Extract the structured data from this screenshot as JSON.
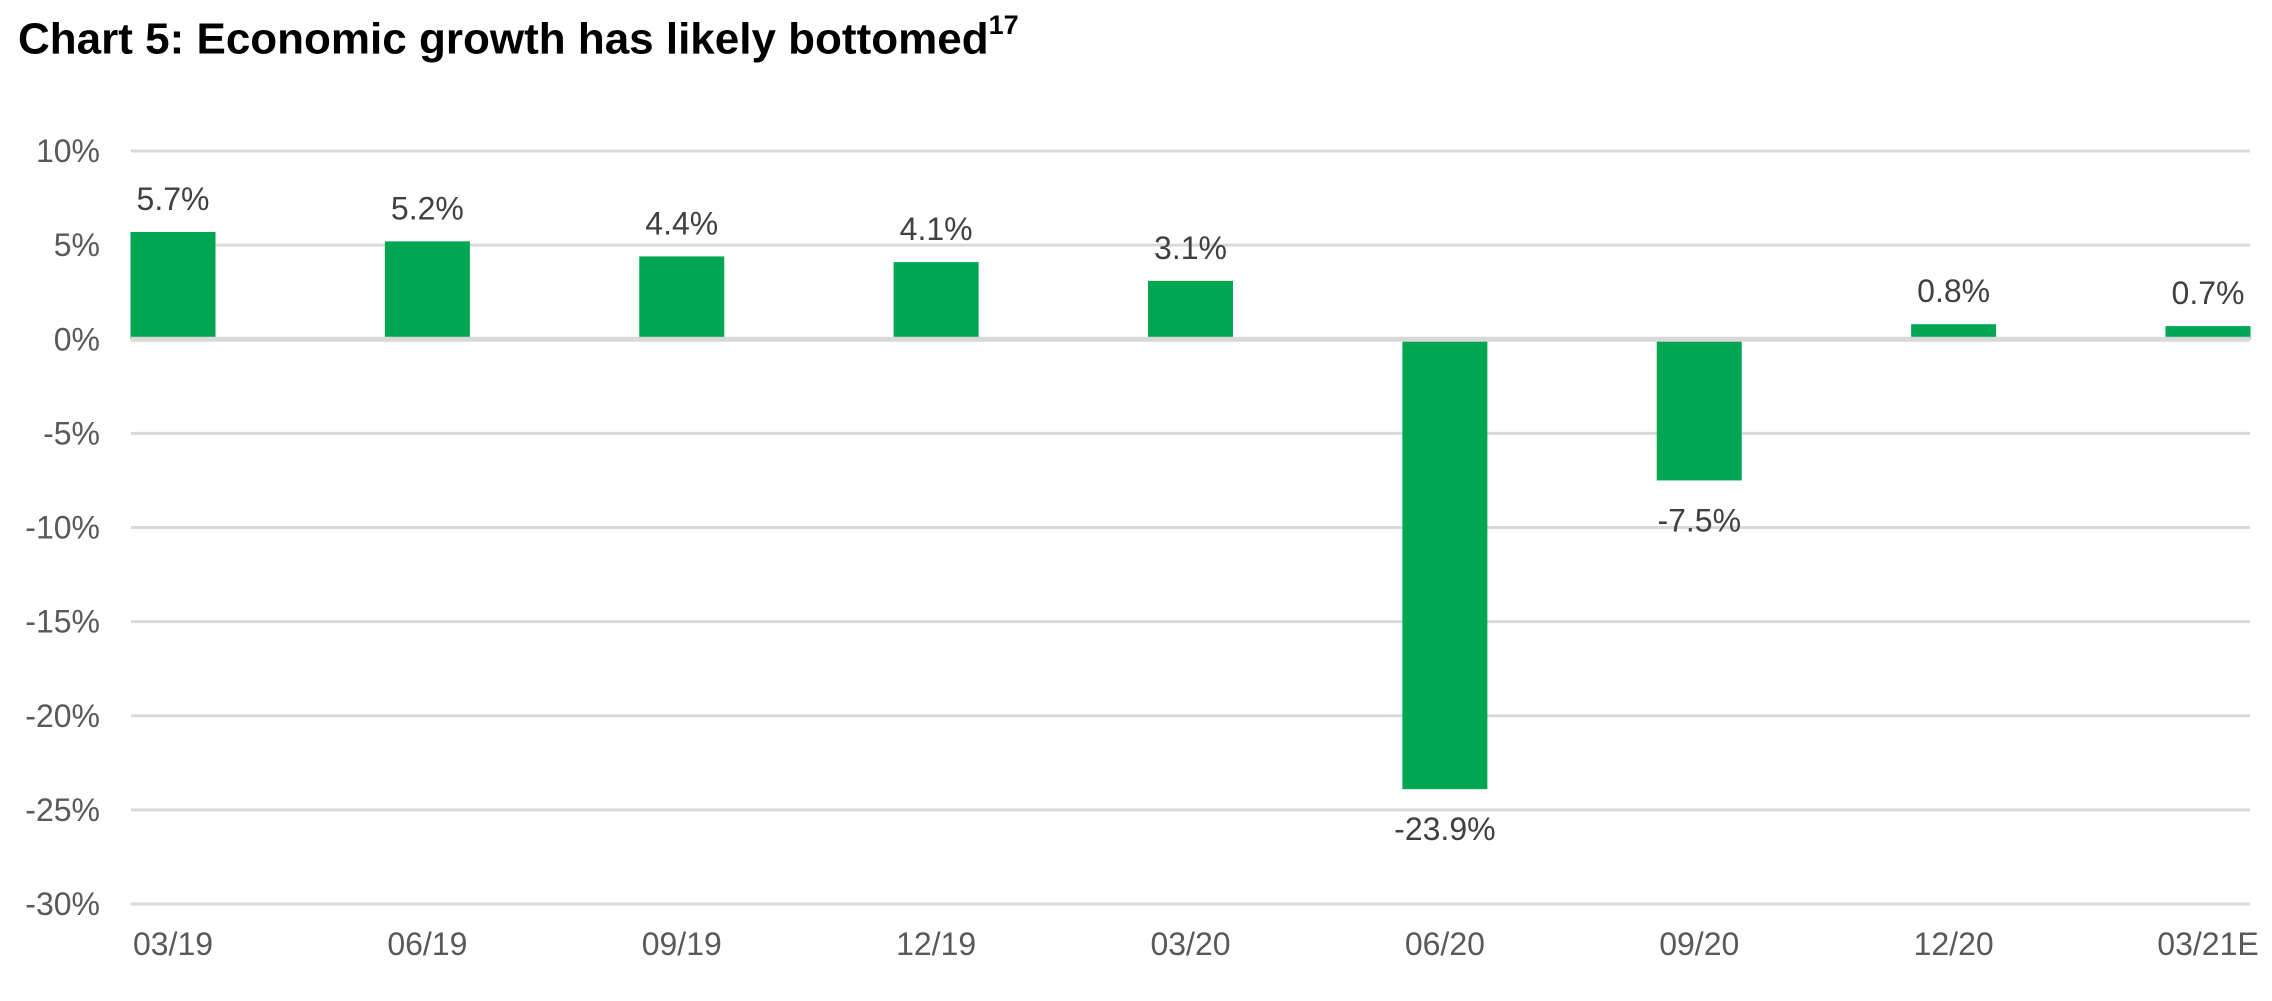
{
  "title": "Chart 5: Economic growth has likely bottomed",
  "title_superscript": "17",
  "chart_data": {
    "type": "bar",
    "categories": [
      "03/19",
      "06/19",
      "09/19",
      "12/19",
      "03/20",
      "06/20",
      "09/20",
      "12/20",
      "03/21E"
    ],
    "values": [
      5.7,
      5.2,
      4.4,
      4.1,
      3.1,
      -23.9,
      -7.5,
      0.8,
      0.7
    ],
    "data_labels": [
      "5.7%",
      "5.2%",
      "4.4%",
      "4.1%",
      "3.1%",
      "-23.9%",
      "-7.5%",
      "0.8%",
      "0.7%"
    ],
    "ylim": [
      -30,
      10
    ],
    "yticks": [
      10,
      5,
      0,
      -5,
      -10,
      -15,
      -20,
      -25,
      -30
    ],
    "ytick_labels": [
      "10%",
      "5%",
      "0%",
      "-5%",
      "-10%",
      "-15%",
      "-20%",
      "-25%",
      "-30%"
    ],
    "xlabel": "",
    "ylabel": "",
    "grid": true,
    "legend": "none",
    "colors": {
      "bar": "#00A651",
      "grid": "#D9D9D9",
      "zero_line": "#D9D9D9",
      "tick_text": "#595959",
      "label_text": "#404040"
    }
  }
}
